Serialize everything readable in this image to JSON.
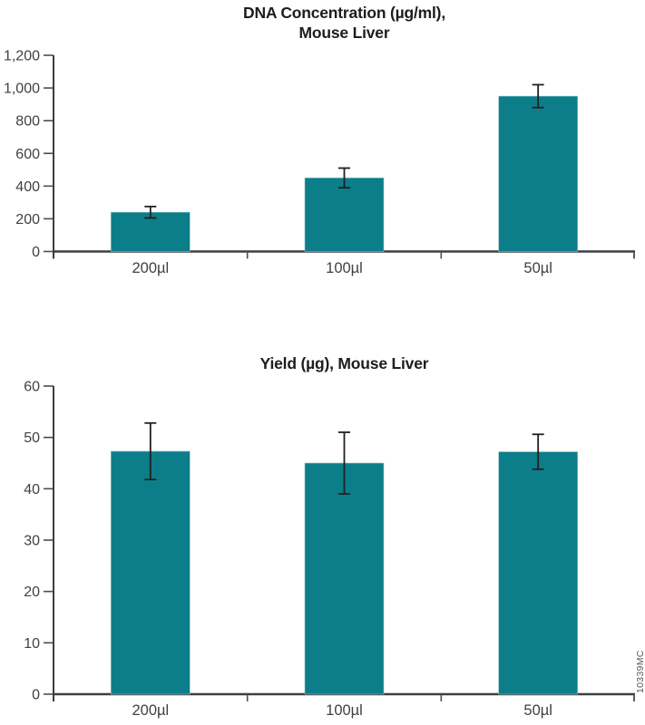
{
  "figure": {
    "sidenote": "10339MC",
    "colors": {
      "bar": "#0b7e8a",
      "bar_edge": "#8fc3c9",
      "axis": "#3e3e40",
      "tick": "#4d4d4f",
      "label": "#414042",
      "title": "#1d1d1f",
      "error": "#231f20",
      "sidenote": "#58595b"
    }
  },
  "chart_data": [
    {
      "type": "bar",
      "title": "DNA Concentration (µg/ml), Mouse Liver",
      "title_lines": [
        "DNA Concentration (µg/ml),",
        "Mouse Liver"
      ],
      "categories": [
        "200µl",
        "100µl",
        "50µl"
      ],
      "values": [
        240,
        450,
        950
      ],
      "errors": [
        35,
        60,
        70
      ],
      "ylabel": "",
      "xlabel": "",
      "ylim": [
        0,
        1200
      ],
      "yticks": [
        0,
        200,
        400,
        600,
        800,
        1000,
        1200
      ],
      "ytick_labels": [
        "0",
        "200",
        "400",
        "600",
        "800",
        "1,000",
        "1,200"
      ],
      "grid": false,
      "legend": "none"
    },
    {
      "type": "bar",
      "title": "Yield (µg), Mouse Liver",
      "title_lines": [
        "Yield (µg), Mouse Liver"
      ],
      "categories": [
        "200µl",
        "100µl",
        "50µl"
      ],
      "values": [
        47.3,
        45,
        47.2
      ],
      "errors": [
        5.5,
        6,
        3.4
      ],
      "ylabel": "",
      "xlabel": "",
      "ylim": [
        0,
        60
      ],
      "yticks": [
        0,
        10,
        20,
        30,
        40,
        50,
        60
      ],
      "ytick_labels": [
        "0",
        "10",
        "20",
        "30",
        "40",
        "50",
        "60"
      ],
      "grid": false,
      "legend": "none"
    }
  ]
}
